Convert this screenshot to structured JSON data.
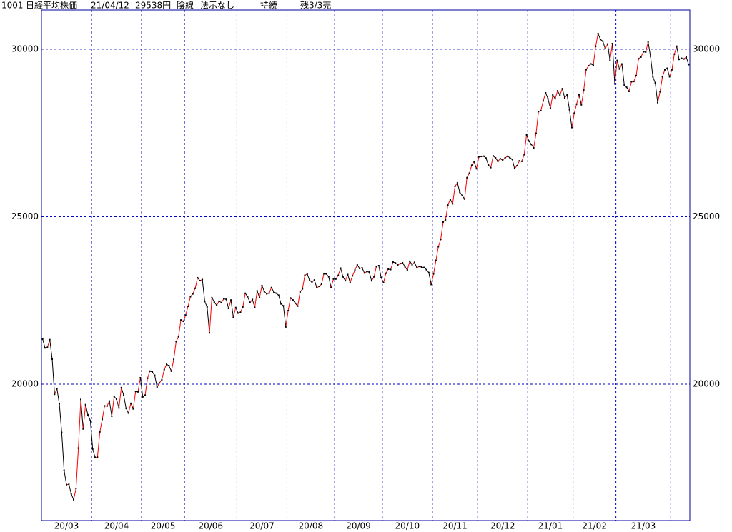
{
  "header": {
    "code": "1001",
    "name": "日経平均株価",
    "date": "21/04/12",
    "price": "29538円",
    "mode": "陰線",
    "display": "法示なし",
    "state": "持続",
    "remain": "残3/3売"
  },
  "chart_data": {
    "type": "line",
    "up_color": "#ff0000",
    "down_color": "#000000",
    "grid": true,
    "values": [
      21344,
      21083,
      21100,
      21329,
      20749,
      19698,
      19867,
      19416,
      18559,
      17431,
      17002,
      17011,
      16726,
      16552,
      16887,
      18092,
      19546,
      18664,
      19389,
      19084,
      18917,
      18065,
      17818,
      17820,
      18576,
      18950,
      19353,
      19345,
      19498,
      19043,
      19638,
      19550,
      19290,
      19897,
      19669,
      19280,
      19137,
      19429,
      19262,
      19783,
      19771,
      20194,
      19619,
      19674,
      20179,
      20390,
      20366,
      20267,
      19915,
      20037,
      20133,
      20433,
      20595,
      20552,
      20388,
      20741,
      21271,
      21419,
      21916,
      21877,
      22062,
      22325,
      22613,
      22695,
      22863,
      23178,
      23091,
      23124,
      22473,
      22305,
      21530,
      22582,
      22455,
      22355,
      22478,
      22437,
      22549,
      22534,
      22259,
      22512,
      21995,
      22288,
      22122,
      22146,
      22306,
      22714,
      22614,
      22438,
      22529,
      22291,
      22784,
      22587,
      22945,
      22770,
      22696,
      22717,
      22884,
      22751,
      22715,
      22657,
      22397,
      22339,
      21710,
      22195,
      22573,
      22514,
      22418,
      22329,
      22750,
      22843,
      23249,
      23289,
      23096,
      23051,
      23110,
      22880,
      22920,
      22985,
      23296,
      23290,
      23208,
      22882,
      23139,
      23138,
      23247,
      23465,
      23205,
      23089,
      23274,
      23032,
      23235,
      23406,
      23559,
      23454,
      23475,
      23319,
      23360,
      23346,
      23087,
      23204,
      23511,
      23539,
      23185,
      23029,
      23312,
      23433,
      23422,
      23647,
      23619,
      23558,
      23601,
      23626,
      23507,
      23410,
      23671,
      23567,
      23639,
      23474,
      23516,
      23494,
      23485,
      23418,
      23331,
      22977,
      23295,
      23695,
      24105,
      24325,
      24839,
      24905,
      25349,
      25520,
      25385,
      25906,
      26014,
      25728,
      25634,
      25527,
      26165,
      26296,
      26537,
      26644,
      26433,
      26787,
      26800,
      26809,
      26751,
      26547,
      26467,
      26817,
      26756,
      26652,
      26732,
      26687,
      26757,
      26806,
      26763,
      26714,
      26436,
      26524,
      26668,
      26656,
      26854,
      27444,
      27258,
      27158,
      27056,
      27490,
      28139,
      28164,
      28456,
      28698,
      28519,
      28242,
      28633,
      28523,
      28757,
      28631,
      28822,
      28546,
      28635,
      28197,
      27663,
      28091,
      28362,
      28646,
      28341,
      28779,
      29388,
      29505,
      29562,
      29520,
      30084,
      30467,
      30292,
      30236,
      30017,
      30156,
      29671,
      30168,
      28966,
      29663,
      29408,
      29559,
      28930,
      28864,
      28743,
      29028,
      29036,
      29211,
      29717,
      29766,
      29921,
      29914,
      30216,
      29792,
      29174,
      28995,
      28405,
      28729,
      29176,
      29384,
      29432,
      29178,
      29388,
      29854,
      30089,
      29696,
      29730,
      29708,
      29768,
      29538
    ],
    "xlim": [
      -0.5,
      271.5
    ],
    "xticks": [
      {
        "value": -0.5,
        "label": "20/03"
      },
      {
        "value": 20.5,
        "label": "20/04"
      },
      {
        "value": 41.5,
        "label": "20/05"
      },
      {
        "value": 59.5,
        "label": "20/06"
      },
      {
        "value": 81.5,
        "label": "20/07"
      },
      {
        "value": 102.5,
        "label": "20/08"
      },
      {
        "value": 122.5,
        "label": "20/09"
      },
      {
        "value": 142.5,
        "label": "20/10"
      },
      {
        "value": 163.5,
        "label": "20/11"
      },
      {
        "value": 182.5,
        "label": "20/12"
      },
      {
        "value": 203.5,
        "label": "21/01"
      },
      {
        "value": 222.5,
        "label": "21/02"
      },
      {
        "value": 240.5,
        "label": "21/03"
      },
      263.5
    ],
    "ylim": [
      15930,
      31170
    ],
    "yticks": [
      20000,
      25000,
      30000
    ]
  }
}
